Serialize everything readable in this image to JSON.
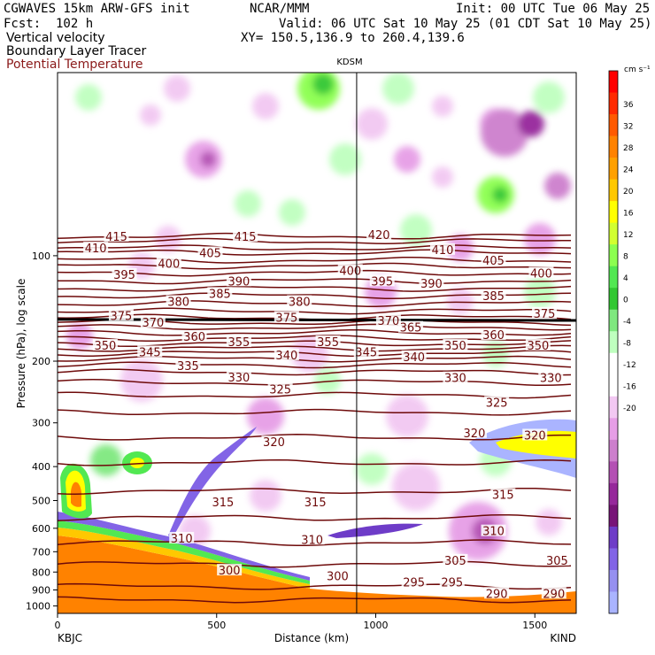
{
  "header": {
    "model": "CGWAVES 15km ARW-GFS init",
    "org": "NCAR/MMM",
    "init": "Init: 00 UTC Tue 06 May 25",
    "fcst": "Fcst:  102 h",
    "valid": "Valid: 06 UTC Sat 10 May 25 (01 CDT Sat 10 May 25)",
    "fields": [
      "Vertical velocity",
      "Boundary Layer Tracer",
      "Potential Temperature"
    ],
    "xy": "XY= 150.5,136.9 to 260.4,139.6",
    "field_colors": [
      "#000000",
      "#000000",
      "#8b1a1a"
    ]
  },
  "chart_data": {
    "type": "heatmap",
    "station_marker": "KDSM",
    "xlabel": "Distance (km)",
    "ylabel": "Pressure (hPa), log scale",
    "x_ticks": [
      "0",
      "500",
      "1000",
      "1500"
    ],
    "xlim": [
      0,
      1630
    ],
    "y_ticks": [
      "100",
      "200",
      "300",
      "400",
      "500",
      "600",
      "700",
      "800",
      "900",
      "1000"
    ],
    "ylim": [
      1050,
      30
    ],
    "x_endpoints": [
      "KBJC",
      "KIND"
    ],
    "station_x_km": 940,
    "colorbar": {
      "unit": "cm s⁻¹",
      "ticks": [
        "36",
        "32",
        "28",
        "24",
        "20",
        "16",
        "12",
        "8",
        "4",
        "0",
        "-4",
        "-8",
        "-12",
        "-16",
        "-20"
      ],
      "colors": [
        "#ff0000",
        "#ff2a00",
        "#ff5a00",
        "#ff8200",
        "#ffa000",
        "#ffc800",
        "#ffff00",
        "#d2ff30",
        "#8cff50",
        "#52e852",
        "#32c832",
        "#7fe87f",
        "#bfffbf",
        "#ffffff",
        "#ffffff",
        "#f2c8f2",
        "#e69ee6",
        "#cd7fcd",
        "#b450b4",
        "#96289b",
        "#781478",
        "#6e3cc8",
        "#8264e6",
        "#9690f0",
        "#aab4ff"
      ]
    },
    "theta_labels": [
      {
        "v": "415",
        "x": 185,
        "p": 88
      },
      {
        "v": "410",
        "x": 120,
        "p": 95
      },
      {
        "v": "415",
        "x": 590,
        "p": 88
      },
      {
        "v": "420",
        "x": 1010,
        "p": 87
      },
      {
        "v": "410",
        "x": 1210,
        "p": 96
      },
      {
        "v": "405",
        "x": 1370,
        "p": 103
      },
      {
        "v": "405",
        "x": 480,
        "p": 98
      },
      {
        "v": "400",
        "x": 350,
        "p": 105
      },
      {
        "v": "400",
        "x": 920,
        "p": 110
      },
      {
        "v": "400",
        "x": 1520,
        "p": 112
      },
      {
        "v": "395",
        "x": 210,
        "p": 113
      },
      {
        "v": "395",
        "x": 1020,
        "p": 118
      },
      {
        "v": "390",
        "x": 1175,
        "p": 120
      },
      {
        "v": "390",
        "x": 570,
        "p": 118
      },
      {
        "v": "385",
        "x": 510,
        "p": 128
      },
      {
        "v": "385",
        "x": 1370,
        "p": 130
      },
      {
        "v": "380",
        "x": 380,
        "p": 135
      },
      {
        "v": "380",
        "x": 760,
        "p": 135
      },
      {
        "v": "375",
        "x": 200,
        "p": 148
      },
      {
        "v": "375",
        "x": 720,
        "p": 150
      },
      {
        "v": "375",
        "x": 1530,
        "p": 146
      },
      {
        "v": "370",
        "x": 300,
        "p": 155
      },
      {
        "v": "370",
        "x": 1040,
        "p": 153
      },
      {
        "v": "365",
        "x": 1110,
        "p": 160
      },
      {
        "v": "360",
        "x": 430,
        "p": 170
      },
      {
        "v": "360",
        "x": 1370,
        "p": 168
      },
      {
        "v": "355",
        "x": 570,
        "p": 176
      },
      {
        "v": "355",
        "x": 850,
        "p": 176
      },
      {
        "v": "350",
        "x": 150,
        "p": 180
      },
      {
        "v": "350",
        "x": 1250,
        "p": 180
      },
      {
        "v": "350",
        "x": 1510,
        "p": 180
      },
      {
        "v": "345",
        "x": 290,
        "p": 188
      },
      {
        "v": "345",
        "x": 970,
        "p": 188
      },
      {
        "v": "340",
        "x": 720,
        "p": 192
      },
      {
        "v": "340",
        "x": 1120,
        "p": 194
      },
      {
        "v": "335",
        "x": 410,
        "p": 206
      },
      {
        "v": "330",
        "x": 570,
        "p": 222
      },
      {
        "v": "330",
        "x": 1250,
        "p": 223
      },
      {
        "v": "330",
        "x": 1550,
        "p": 223
      },
      {
        "v": "325",
        "x": 700,
        "p": 240
      },
      {
        "v": "325",
        "x": 1380,
        "p": 262
      },
      {
        "v": "320",
        "x": 680,
        "p": 340
      },
      {
        "v": "320",
        "x": 1310,
        "p": 320
      },
      {
        "v": "320",
        "x": 1500,
        "p": 325
      },
      {
        "v": "315",
        "x": 520,
        "p": 505
      },
      {
        "v": "315",
        "x": 810,
        "p": 505
      },
      {
        "v": "315",
        "x": 1400,
        "p": 480
      },
      {
        "v": "310",
        "x": 390,
        "p": 640
      },
      {
        "v": "310",
        "x": 800,
        "p": 645
      },
      {
        "v": "310",
        "x": 1370,
        "p": 610
      },
      {
        "v": "305",
        "x": 1250,
        "p": 740
      },
      {
        "v": "305",
        "x": 1570,
        "p": 740
      },
      {
        "v": "300",
        "x": 880,
        "p": 820
      },
      {
        "v": "300",
        "x": 540,
        "p": 790
      },
      {
        "v": "295",
        "x": 1120,
        "p": 855
      },
      {
        "v": "295",
        "x": 1240,
        "p": 855
      },
      {
        "v": "290",
        "x": 1380,
        "p": 920
      },
      {
        "v": "290",
        "x": 1560,
        "p": 920
      }
    ]
  }
}
